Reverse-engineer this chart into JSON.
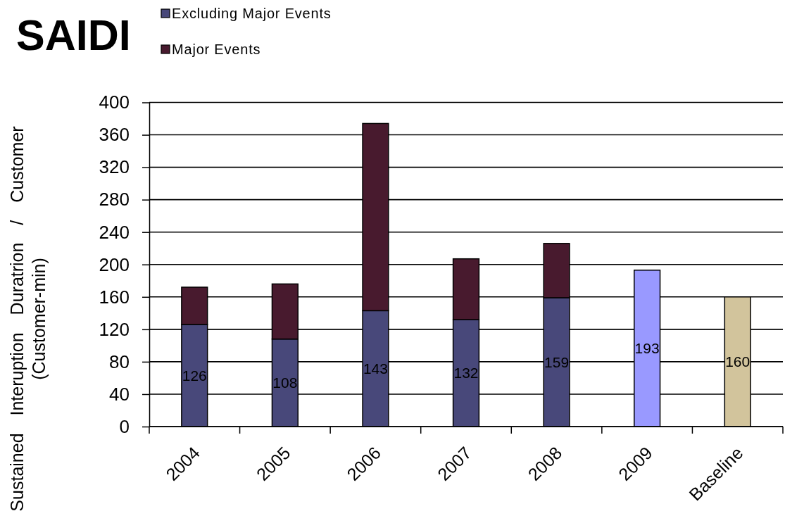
{
  "chart_data": {
    "type": "bar",
    "title": "SAIDI",
    "ylabel": "Sustained Interuption Duratrion / Customer (Customer-min)",
    "categories": [
      "2004",
      "2005",
      "2006",
      "2007",
      "2008",
      "2009",
      "Baseline"
    ],
    "series": [
      {
        "name": "Excluding Major Events",
        "color": "#48487a",
        "colors": [
          "#48487a",
          "#48487a",
          "#48487a",
          "#48487a",
          "#48487a",
          "#9999ff",
          "#d2c49c"
        ],
        "values": [
          126,
          108,
          143,
          132,
          159,
          193,
          160
        ],
        "value_labels": [
          "126",
          "108",
          "143",
          "132",
          "159",
          "193",
          "160"
        ]
      },
      {
        "name": "Major Events",
        "color": "#481a2e",
        "values": [
          46,
          68,
          231,
          75,
          67,
          null,
          null
        ]
      }
    ],
    "stacked": true,
    "ylim": [
      0,
      400
    ],
    "yticks": [
      0,
      40,
      80,
      120,
      160,
      200,
      240,
      280,
      320,
      360,
      400
    ],
    "grid": "y",
    "legend": "top"
  }
}
